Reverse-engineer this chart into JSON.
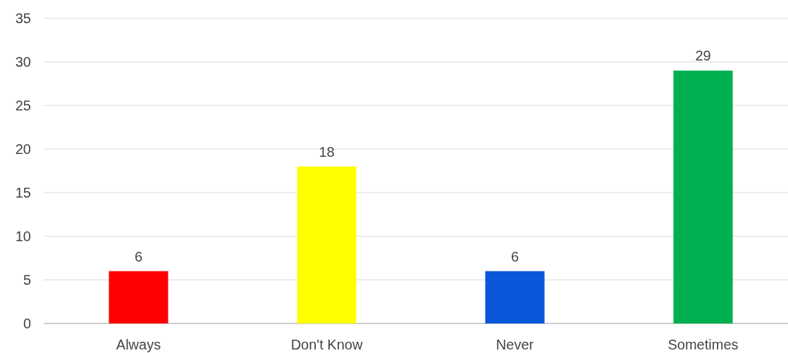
{
  "chart_data": {
    "type": "bar",
    "categories": [
      "Always",
      "Don't Know",
      "Never",
      "Sometimes"
    ],
    "values": [
      6,
      18,
      6,
      29
    ],
    "colors": [
      "#ff0000",
      "#ffff00",
      "#0b57d9",
      "#00b050"
    ],
    "ylim": [
      0,
      35
    ],
    "yticks": [
      0,
      5,
      10,
      15,
      20,
      25,
      30,
      35
    ],
    "grid": "y",
    "data_labels": true
  }
}
